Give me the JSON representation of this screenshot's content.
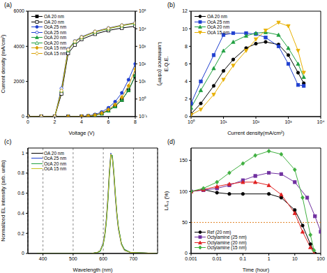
{
  "chart_data": [
    {
      "type": "line",
      "title": "(a)",
      "x_label": "Voltage (V)",
      "y_label": "Current density (mA/cm²)",
      "y2_label": "Luminance (cd/m²)",
      "xlim": [
        0,
        8
      ],
      "xticks": [
        0,
        2,
        4,
        6,
        8
      ],
      "ylim": [
        0,
        6000
      ],
      "yticks": [
        0,
        2000,
        4000,
        6000
      ],
      "y2lim": [
        0.1,
        100000
      ],
      "y2ticks": [
        {
          "value": 0.1,
          "label": "10⁻¹"
        },
        {
          "value": 1,
          "label": "10⁰"
        },
        {
          "value": 10,
          "label": "10¹"
        },
        {
          "value": 100,
          "label": "10²"
        },
        {
          "value": 1000,
          "label": "10³"
        },
        {
          "value": 10000,
          "label": "10⁴"
        },
        {
          "value": 100000,
          "label": "10⁵"
        }
      ],
      "log": "y2",
      "grid": false,
      "legend": "top-left",
      "series": [
        {
          "name": "OA 20 nm",
          "color": "#000000",
          "marker": "square",
          "line_style": "solid",
          "x": [
            0,
            1,
            2,
            3,
            4,
            4.5,
            5,
            5.5,
            6,
            6.5,
            7,
            7.5,
            8
          ],
          "values": [
            0,
            0,
            0,
            2,
            10,
            30,
            80,
            180,
            350,
            600,
            950,
            1500,
            2300
          ]
        },
        {
          "name": "OA 20 nm",
          "color": "#000000",
          "marker": "square-open",
          "line_style": "solid",
          "axis": "y2",
          "x": [
            0,
            1,
            2,
            2.5,
            3,
            3.5,
            4,
            5,
            6,
            7,
            8
          ],
          "values": [
            0.1,
            0.1,
            0.1,
            2,
            400,
            1200,
            2500,
            5000,
            8000,
            11000,
            14000
          ]
        },
        {
          "name": "OcA 25 nm",
          "color": "#1f3fd0",
          "marker": "circle",
          "line_style": "solid",
          "x": [
            0,
            1,
            2,
            3,
            4,
            4.5,
            5,
            5.5,
            6,
            6.5,
            7,
            7.5,
            8
          ],
          "values": [
            0,
            0,
            0,
            3,
            15,
            45,
            120,
            260,
            500,
            850,
            1350,
            2100,
            3000
          ]
        },
        {
          "name": "OcA 25 nm",
          "color": "#1f3fd0",
          "marker": "circle-open",
          "line_style": "solid",
          "axis": "y2",
          "x": [
            0,
            1,
            2,
            2.5,
            3,
            3.5,
            4,
            5,
            6,
            7,
            8
          ],
          "values": [
            0.1,
            0.1,
            0.1,
            4,
            700,
            2000,
            3500,
            7000,
            11000,
            16000,
            22000
          ]
        },
        {
          "name": "OcA 20 nm",
          "color": "#20a040",
          "marker": "triangle",
          "line_style": "solid",
          "x": [
            0,
            1,
            2,
            3,
            4,
            4.5,
            5,
            5.5,
            6,
            6.5,
            7,
            7.5,
            8
          ],
          "values": [
            0,
            0,
            0,
            2,
            10,
            30,
            80,
            170,
            340,
            580,
            950,
            1500,
            2350
          ]
        },
        {
          "name": "OcA 20 nm",
          "color": "#20a040",
          "marker": "triangle-open",
          "line_style": "solid",
          "axis": "y2",
          "x": [
            0,
            1,
            2,
            2.5,
            3,
            3.5,
            4,
            5,
            6,
            7,
            8
          ],
          "values": [
            0.1,
            0.1,
            0.1,
            3,
            600,
            1800,
            3200,
            6500,
            10000,
            15000,
            20000
          ]
        },
        {
          "name": "OcA 15 nm",
          "color": "#d8a000",
          "marker": "diamond",
          "line_style": "solid",
          "x": [
            0,
            1,
            2,
            3,
            4,
            4.5,
            5,
            5.5,
            6,
            6.5,
            7,
            7.5,
            8
          ],
          "values": [
            0,
            0,
            0,
            2,
            12,
            35,
            90,
            200,
            400,
            680,
            1100,
            1750,
            2700
          ]
        },
        {
          "name": "OcA 15 nm",
          "color": "#d8a000",
          "marker": "diamond-open",
          "line_style": "solid",
          "axis": "y2",
          "x": [
            0,
            1,
            2,
            2.5,
            3,
            3.5,
            4,
            5,
            6,
            7,
            8
          ],
          "values": [
            0.1,
            0.1,
            0.1,
            3,
            650,
            1900,
            3300,
            6800,
            10500,
            15500,
            21000
          ]
        }
      ]
    },
    {
      "type": "line",
      "title": "(b)",
      "x_label": "Current density(mA/cm²)",
      "y_label": "E.Q.E.",
      "xlim": [
        1,
        10000
      ],
      "xticks": [
        {
          "value": 1,
          "label": "10⁰"
        },
        {
          "value": 10,
          "label": "10¹"
        },
        {
          "value": 100,
          "label": "10²"
        },
        {
          "value": 1000,
          "label": "10³"
        },
        {
          "value": 10000,
          "label": "10⁴"
        }
      ],
      "ylim": [
        0,
        12
      ],
      "yticks": [
        0,
        2,
        4,
        6,
        8,
        10,
        12
      ],
      "log": "x",
      "grid": false,
      "legend": "top-left",
      "series": [
        {
          "name": "OA 20 nm",
          "color": "#000000",
          "marker": "circle",
          "line_style": "solid",
          "x": [
            1,
            2,
            5,
            10,
            20,
            50,
            100,
            200,
            500,
            1000,
            2000,
            3000
          ],
          "values": [
            0.3,
            1.5,
            3.5,
            5.2,
            6.5,
            7.8,
            8.3,
            8.5,
            8.2,
            7.0,
            5.0,
            3.8
          ]
        },
        {
          "name": "OcA 25 nm",
          "color": "#1f3fd0",
          "marker": "square",
          "line_style": "solid",
          "x": [
            1,
            2,
            5,
            10,
            20,
            50,
            100,
            200,
            500,
            1000,
            2000,
            3000
          ],
          "values": [
            1.5,
            4,
            7,
            9.3,
            9.5,
            9.5,
            9.4,
            9.0,
            8.0,
            6.0,
            3.6,
            3.5
          ]
        },
        {
          "name": "OcA 20 nm",
          "color": "#20a040",
          "marker": "triangle",
          "line_style": "solid",
          "x": [
            1,
            2,
            5,
            10,
            20,
            50,
            100,
            200,
            500,
            1000,
            2000,
            3000
          ],
          "values": [
            1,
            3,
            5.5,
            7.5,
            8.5,
            9.2,
            9.5,
            9.6,
            9.3,
            7.8,
            6.0,
            4.5
          ]
        },
        {
          "name": "OcA 15 nm",
          "color": "#e8b000",
          "marker": "triangle-down",
          "line_style": "solid",
          "x": [
            1,
            2,
            5,
            10,
            20,
            50,
            100,
            200,
            500,
            1000,
            2000,
            3000
          ],
          "values": [
            0.2,
            0.8,
            2.5,
            4.2,
            5.8,
            7.5,
            8.8,
            9.8,
            10.7,
            10.3,
            7.5,
            5.0
          ]
        }
      ]
    },
    {
      "type": "line",
      "title": "(c)",
      "x_label": "Wavelength (nm)",
      "y_label": "Normalized EL intensity (arb. units)",
      "xlim": [
        350,
        780
      ],
      "xticks": [
        400,
        500,
        600,
        700
      ],
      "ylim": [
        0,
        1.05
      ],
      "yticks": [
        0,
        0.2,
        0.4,
        0.6,
        0.8,
        1
      ],
      "grid": true,
      "legend": "top-left",
      "series": [
        {
          "name": "OA 20 nm",
          "color": "#000000",
          "marker": "none",
          "line_style": "solid",
          "x": [
            380,
            560,
            580,
            590,
            600,
            605,
            610,
            615,
            620,
            625,
            630,
            635,
            640,
            645,
            650,
            660,
            670,
            690,
            780
          ],
          "values": [
            0,
            0,
            0.01,
            0.03,
            0.1,
            0.18,
            0.32,
            0.52,
            0.78,
            0.98,
            0.96,
            0.8,
            0.58,
            0.4,
            0.26,
            0.1,
            0.04,
            0.01,
            0
          ]
        },
        {
          "name": "OcA 25 nm",
          "color": "#1f3fd0",
          "marker": "none",
          "line_style": "solid",
          "x": [
            380,
            560,
            580,
            590,
            600,
            605,
            610,
            615,
            620,
            625,
            630,
            635,
            640,
            645,
            650,
            660,
            670,
            690,
            780
          ],
          "values": [
            0,
            0,
            0.01,
            0.03,
            0.11,
            0.2,
            0.35,
            0.56,
            0.82,
            1,
            0.95,
            0.77,
            0.55,
            0.37,
            0.24,
            0.09,
            0.03,
            0.01,
            0
          ]
        },
        {
          "name": "OcA 20 nm",
          "color": "#20a040",
          "marker": "none",
          "line_style": "solid",
          "x": [
            380,
            560,
            580,
            590,
            600,
            605,
            610,
            615,
            620,
            625,
            630,
            635,
            640,
            645,
            650,
            660,
            670,
            690,
            780
          ],
          "values": [
            0,
            0,
            0.01,
            0.02,
            0.09,
            0.17,
            0.3,
            0.5,
            0.76,
            0.97,
            0.98,
            0.82,
            0.6,
            0.41,
            0.27,
            0.1,
            0.04,
            0.01,
            0
          ]
        },
        {
          "name": "OcA 15 nm",
          "color": "#c8c020",
          "marker": "none",
          "line_style": "solid",
          "x": [
            380,
            560,
            580,
            590,
            600,
            605,
            610,
            615,
            620,
            625,
            630,
            635,
            640,
            645,
            650,
            660,
            670,
            690,
            780
          ],
          "values": [
            0,
            0,
            0.01,
            0.03,
            0.1,
            0.19,
            0.33,
            0.54,
            0.8,
            0.99,
            0.95,
            0.79,
            0.57,
            0.39,
            0.25,
            0.09,
            0.03,
            0.01,
            0
          ]
        }
      ]
    },
    {
      "type": "line",
      "title": "(d)",
      "x_label": "Time (hour)",
      "y_label": "L/L₀ (%)",
      "xlim": [
        0.001,
        100
      ],
      "xticks": [
        0.001,
        0.01,
        0.1,
        1,
        10,
        100
      ],
      "ylim": [
        0,
        170
      ],
      "yticks": [
        0,
        50,
        100,
        150
      ],
      "log": "x",
      "grid": false,
      "legend": "bottom-left",
      "reference_y": 50,
      "series": [
        {
          "name": "Ref (20 nm)",
          "color": "#000000",
          "marker": "circle",
          "line_style": "solid",
          "x": [
            0.001,
            0.003,
            0.01,
            0.03,
            0.1,
            1,
            3,
            10,
            20,
            40,
            60
          ],
          "values": [
            100,
            103,
            98,
            96,
            96,
            96,
            90,
            70,
            45,
            15,
            0
          ]
        },
        {
          "name": "Octylamine (25 nm)",
          "color": "#7030a0",
          "marker": "square",
          "line_style": "solid",
          "x": [
            0.001,
            0.003,
            0.01,
            0.03,
            0.1,
            0.3,
            1,
            3,
            10,
            30,
            60,
            100
          ],
          "values": [
            100,
            102,
            105,
            110,
            118,
            125,
            130,
            128,
            115,
            90,
            60,
            35
          ]
        },
        {
          "name": "Octylamine (20 nm)",
          "color": "#e02020",
          "marker": "triangle",
          "line_style": "solid",
          "x": [
            0.001,
            0.003,
            0.01,
            0.03,
            0.1,
            0.3,
            1,
            3,
            10,
            20,
            40,
            55
          ],
          "values": [
            100,
            103,
            108,
            112,
            115,
            115,
            110,
            95,
            65,
            35,
            10,
            0
          ]
        },
        {
          "name": "Octylamine (15 nm)",
          "color": "#40b040",
          "marker": "diamond",
          "line_style": "solid",
          "x": [
            0.001,
            0.003,
            0.01,
            0.03,
            0.1,
            0.3,
            1,
            3,
            10,
            20,
            40,
            55
          ],
          "values": [
            100,
            105,
            115,
            130,
            145,
            158,
            165,
            160,
            135,
            90,
            30,
            5
          ]
        }
      ]
    }
  ]
}
